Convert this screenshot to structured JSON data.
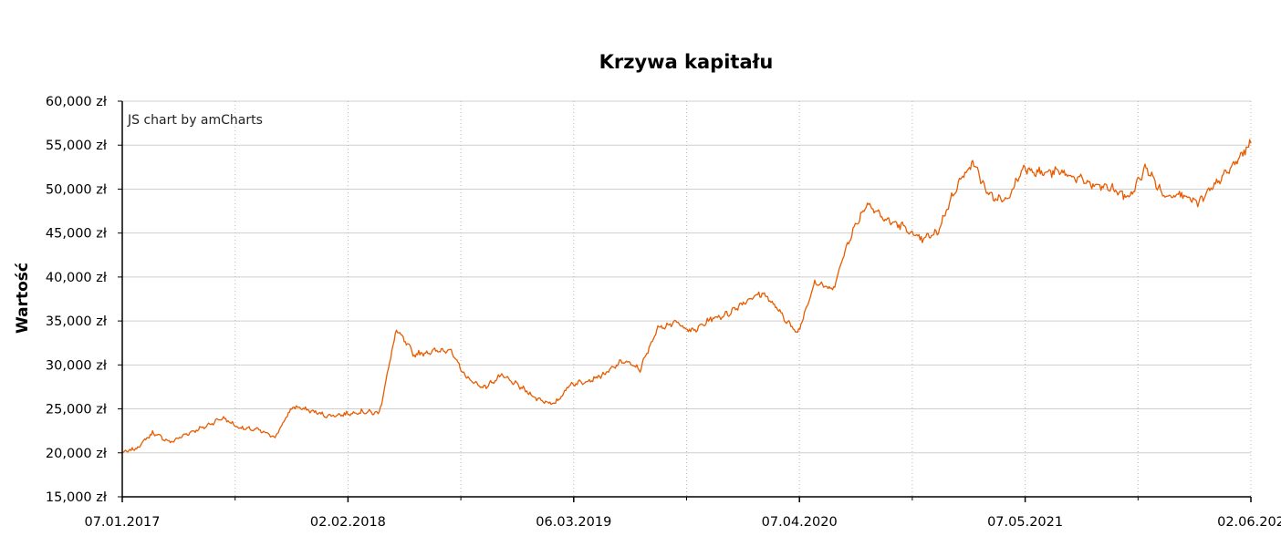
{
  "chart_data": {
    "type": "line",
    "title": "Krzywa kapitału",
    "ylabel": "Wartość",
    "xlabel": "",
    "credit": "JS chart by amCharts",
    "ylim": [
      15000,
      60000
    ],
    "yticks": [
      "15,000 zł",
      "20,000 zł",
      "25,000 zł",
      "30,000 zł",
      "35,000 zł",
      "40,000 zł",
      "45,000 zł",
      "50,000 zł",
      "55,000 zł",
      "60,000 zł"
    ],
    "xticks": [
      "07.01.2017",
      "02.02.2018",
      "06.03.2019",
      "07.04.2020",
      "07.05.2021",
      "02.06.202"
    ],
    "xlim": [
      "2017-01-07",
      "2022-06-02"
    ],
    "grid": true,
    "line_color": "#e85c00",
    "series": [
      {
        "x": [
          "2017-01-07",
          "2017-02-01",
          "2017-03-01",
          "2017-04-01",
          "2017-05-01",
          "2017-06-01",
          "2017-07-01",
          "2017-08-01",
          "2017-09-01",
          "2017-10-01",
          "2017-11-01",
          "2017-12-01",
          "2018-01-01",
          "2018-02-01",
          "2018-03-01",
          "2018-04-01",
          "2018-05-01",
          "2018-06-01",
          "2018-07-01",
          "2018-08-01",
          "2018-09-01",
          "2018-10-01",
          "2018-11-01",
          "2018-12-01",
          "2019-01-01",
          "2019-02-01",
          "2019-03-01",
          "2019-04-01",
          "2019-05-01",
          "2019-06-01",
          "2019-07-01",
          "2019-08-01",
          "2019-09-01",
          "2019-10-01",
          "2019-11-01",
          "2019-12-01",
          "2020-01-01",
          "2020-02-01",
          "2020-03-01",
          "2020-04-01",
          "2020-05-01",
          "2020-06-01",
          "2020-07-01",
          "2020-08-01",
          "2020-09-01",
          "2020-10-01",
          "2020-11-01",
          "2020-12-01",
          "2021-01-01",
          "2021-02-01",
          "2021-03-01",
          "2021-04-01",
          "2021-05-01",
          "2021-06-01",
          "2021-07-01",
          "2021-08-01",
          "2021-09-01",
          "2021-10-01",
          "2021-11-01",
          "2021-12-01",
          "2022-01-01",
          "2022-02-01",
          "2022-03-01",
          "2022-04-01",
          "2022-05-01",
          "2022-06-02"
        ],
        "y": [
          20000,
          20500,
          22300,
          21200,
          22200,
          23000,
          24000,
          22800,
          22600,
          21800,
          25300,
          24800,
          24200,
          24400,
          24700,
          24500,
          34000,
          31200,
          31500,
          31800,
          28500,
          27400,
          28800,
          27600,
          26200,
          25500,
          27800,
          28200,
          29000,
          30500,
          29500,
          34300,
          34800,
          33800,
          35200,
          35800,
          37300,
          38200,
          36000,
          33500,
          39500,
          38500,
          44500,
          48500,
          46500,
          45800,
          44200,
          45000,
          50000,
          53200,
          49200,
          48600,
          52500,
          51800,
          52000,
          51300,
          50400,
          50100,
          49000,
          52500,
          49200,
          49600,
          48300,
          50500,
          52600,
          55200
        ]
      }
    ]
  }
}
